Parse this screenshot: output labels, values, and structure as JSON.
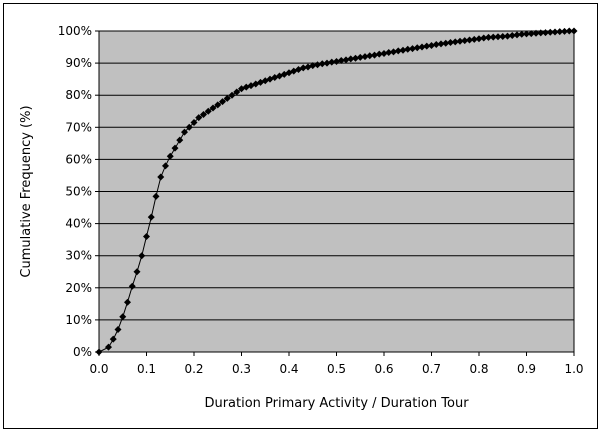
{
  "chart_data": {
    "type": "line",
    "title": "",
    "xlabel": "Duration Primary Activity / Duration Tour",
    "ylabel": "Cumulative Frequency (%)",
    "xlim": [
      0.0,
      1.0
    ],
    "ylim": [
      0,
      100
    ],
    "x_ticks": [
      "0.0",
      "0.1",
      "0.2",
      "0.3",
      "0.4",
      "0.5",
      "0.6",
      "0.7",
      "0.8",
      "0.9",
      "1.0"
    ],
    "y_ticks": [
      "0%",
      "10%",
      "20%",
      "30%",
      "40%",
      "50%",
      "60%",
      "70%",
      "80%",
      "90%",
      "100%"
    ],
    "grid": "horizontal",
    "legend": "none",
    "colors": {
      "plot_background": "#c0c0c0",
      "line": "#000000",
      "marker": "#000000"
    },
    "marker": "diamond",
    "series": [
      {
        "x": [
          0.0,
          0.02,
          0.03,
          0.04,
          0.05,
          0.06,
          0.07,
          0.08,
          0.09,
          0.1,
          0.11,
          0.12,
          0.13,
          0.14,
          0.15,
          0.16,
          0.17,
          0.18,
          0.19,
          0.2,
          0.21,
          0.22,
          0.23,
          0.24,
          0.25,
          0.26,
          0.27,
          0.28,
          0.29,
          0.3,
          0.31,
          0.32,
          0.33,
          0.34,
          0.35,
          0.36,
          0.37,
          0.38,
          0.39,
          0.4,
          0.41,
          0.42,
          0.43,
          0.44,
          0.45,
          0.46,
          0.47,
          0.48,
          0.49,
          0.5,
          0.51,
          0.52,
          0.53,
          0.54,
          0.55,
          0.56,
          0.57,
          0.58,
          0.59,
          0.6,
          0.61,
          0.62,
          0.63,
          0.64,
          0.65,
          0.66,
          0.67,
          0.68,
          0.69,
          0.7,
          0.71,
          0.72,
          0.73,
          0.74,
          0.75,
          0.76,
          0.77,
          0.78,
          0.79,
          0.8,
          0.81,
          0.82,
          0.83,
          0.84,
          0.85,
          0.86,
          0.87,
          0.88,
          0.89,
          0.9,
          0.91,
          0.92,
          0.93,
          0.94,
          0.95,
          0.96,
          0.97,
          0.98,
          0.99,
          1.0
        ],
        "y": [
          0.0,
          1.5,
          4.0,
          7.0,
          11.0,
          15.5,
          20.5,
          25.0,
          30.0,
          36.0,
          42.0,
          48.5,
          54.5,
          58.0,
          61.0,
          63.5,
          66.0,
          68.5,
          70.0,
          71.5,
          73.0,
          74.0,
          75.0,
          76.0,
          77.0,
          78.0,
          79.0,
          80.0,
          81.0,
          82.0,
          82.5,
          83.0,
          83.5,
          84.0,
          84.5,
          85.0,
          85.5,
          86.0,
          86.5,
          87.0,
          87.5,
          88.0,
          88.5,
          88.8,
          89.2,
          89.5,
          89.8,
          90.0,
          90.3,
          90.5,
          90.8,
          91.0,
          91.3,
          91.5,
          91.8,
          92.0,
          92.3,
          92.5,
          92.8,
          93.0,
          93.3,
          93.5,
          93.8,
          94.0,
          94.3,
          94.5,
          94.8,
          95.0,
          95.3,
          95.5,
          95.8,
          96.0,
          96.2,
          96.4,
          96.6,
          96.8,
          97.0,
          97.2,
          97.4,
          97.6,
          97.8,
          98.0,
          98.1,
          98.2,
          98.3,
          98.4,
          98.6,
          98.8,
          99.0,
          99.1,
          99.2,
          99.3,
          99.4,
          99.5,
          99.6,
          99.7,
          99.8,
          99.9,
          100.0,
          100.0
        ]
      }
    ]
  }
}
